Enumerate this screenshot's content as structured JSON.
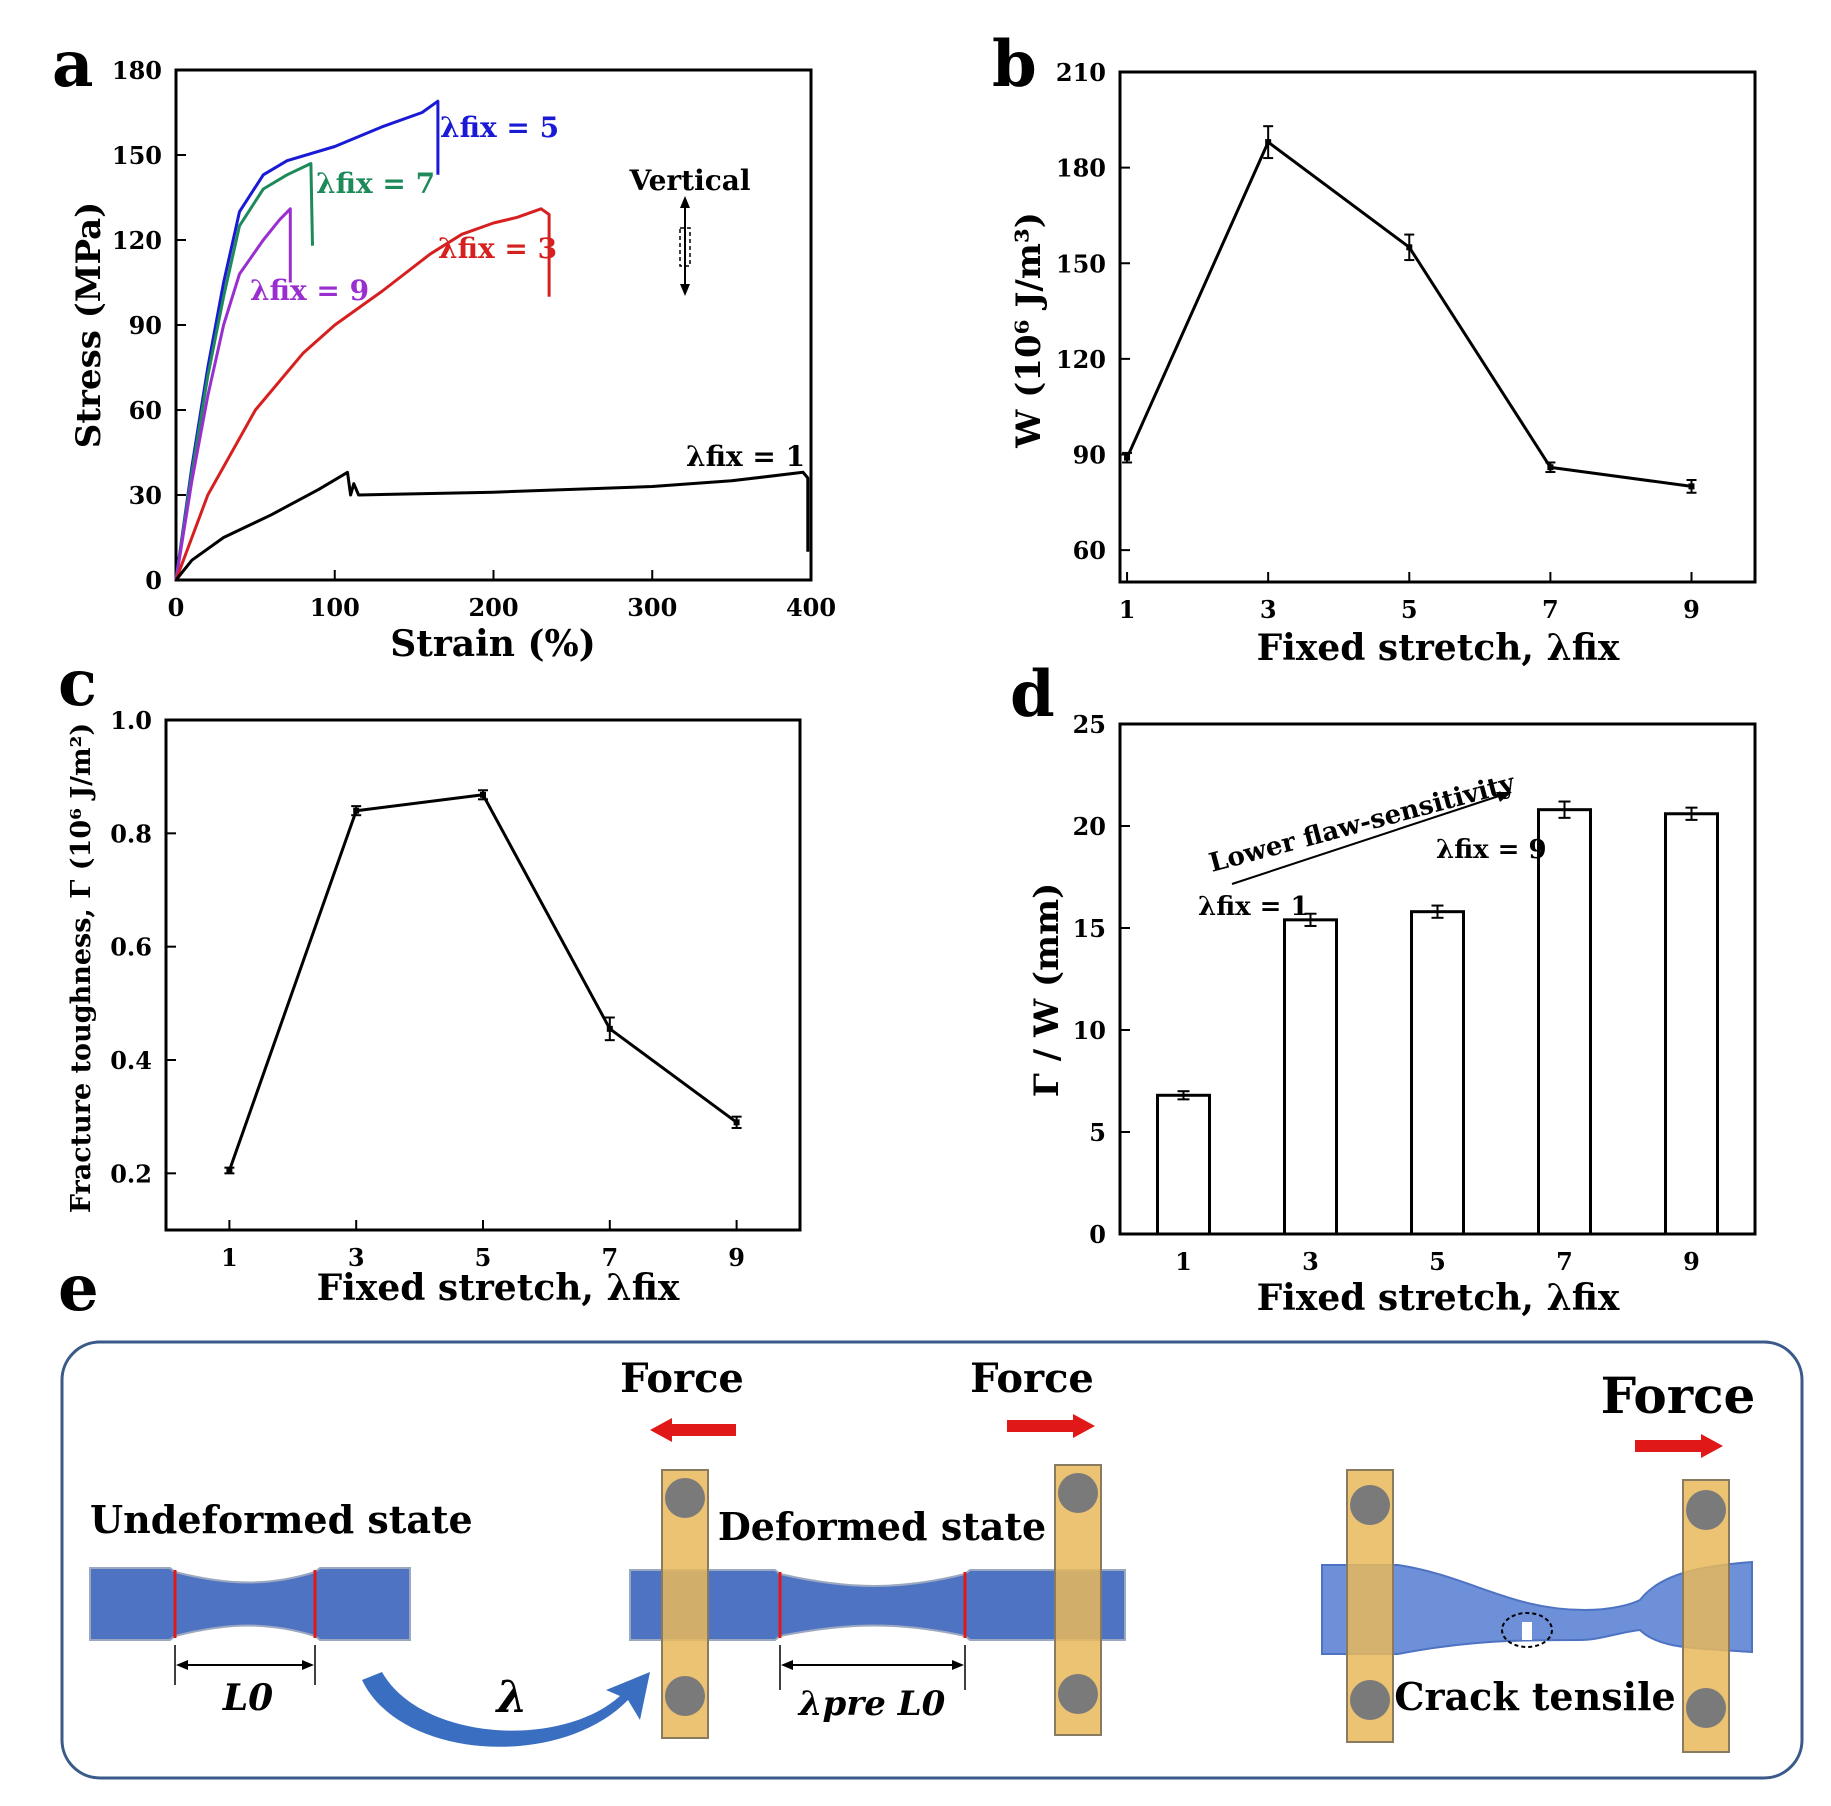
{
  "panels": {
    "a": {
      "letter": "a"
    },
    "b": {
      "letter": "b"
    },
    "c": {
      "letter": "c"
    },
    "d": {
      "letter": "d"
    },
    "e": {
      "letter": "e"
    }
  },
  "chart_data": [
    {
      "panel": "a",
      "type": "line",
      "xlabel": "Strain (%)",
      "ylabel": "Stress (MPa)",
      "xlim": [
        0,
        400
      ],
      "ylim": [
        0,
        180
      ],
      "xticks": [
        0,
        100,
        200,
        300,
        400
      ],
      "yticks": [
        0,
        30,
        60,
        90,
        120,
        150,
        180
      ],
      "annotation": "Vertical",
      "series": [
        {
          "name": "λfix = 5",
          "color": "#1a1ad6",
          "points": [
            [
              0,
              0
            ],
            [
              10,
              40
            ],
            [
              20,
              75
            ],
            [
              30,
              105
            ],
            [
              40,
              130
            ],
            [
              55,
              143
            ],
            [
              70,
              148
            ],
            [
              100,
              153
            ],
            [
              130,
              160
            ],
            [
              155,
              165
            ],
            [
              165,
              169
            ],
            [
              165,
              143
            ]
          ]
        },
        {
          "name": "λfix = 7",
          "color": "#1e8a5a",
          "points": [
            [
              0,
              0
            ],
            [
              10,
              38
            ],
            [
              20,
              72
            ],
            [
              30,
              100
            ],
            [
              40,
              125
            ],
            [
              55,
              138
            ],
            [
              70,
              143
            ],
            [
              85,
              147
            ],
            [
              86,
              118
            ]
          ]
        },
        {
          "name": "λfix = 9",
          "color": "#9a2fd0",
          "points": [
            [
              0,
              0
            ],
            [
              10,
              35
            ],
            [
              20,
              65
            ],
            [
              30,
              90
            ],
            [
              40,
              108
            ],
            [
              55,
              120
            ],
            [
              65,
              127
            ],
            [
              72,
              131
            ],
            [
              72,
              105
            ]
          ]
        },
        {
          "name": "λfix = 3",
          "color": "#d62020",
          "points": [
            [
              0,
              0
            ],
            [
              20,
              30
            ],
            [
              50,
              60
            ],
            [
              80,
              80
            ],
            [
              100,
              90
            ],
            [
              130,
              102
            ],
            [
              160,
              115
            ],
            [
              180,
              122
            ],
            [
              200,
              126
            ],
            [
              215,
              128
            ],
            [
              230,
              131
            ],
            [
              235,
              129
            ],
            [
              235,
              100
            ]
          ]
        },
        {
          "name": "λfix = 1",
          "color": "#000000",
          "points": [
            [
              0,
              0
            ],
            [
              10,
              7
            ],
            [
              30,
              15
            ],
            [
              60,
              23
            ],
            [
              90,
              32
            ],
            [
              105,
              37
            ],
            [
              108,
              38
            ],
            [
              110,
              30
            ],
            [
              112,
              34
            ],
            [
              115,
              30
            ],
            [
              200,
              31
            ],
            [
              300,
              33
            ],
            [
              350,
              35
            ],
            [
              395,
              38
            ],
            [
              398,
              36
            ],
            [
              398,
              10
            ]
          ]
        }
      ]
    },
    {
      "panel": "b",
      "type": "line",
      "xlabel": "Fixed stretch, λfix",
      "ylabel": "W (10⁶ J/m³)",
      "x": [
        1,
        3,
        5,
        7,
        9
      ],
      "values": [
        89,
        188,
        155,
        86,
        80
      ],
      "errors": [
        1.5,
        5,
        4,
        1.5,
        2
      ],
      "xlim": [
        0.9,
        9.9
      ],
      "ylim": [
        50,
        210
      ],
      "yticks": [
        60,
        90,
        120,
        150,
        180,
        210
      ]
    },
    {
      "panel": "c",
      "type": "line",
      "xlabel": "Fixed stretch, λfix",
      "ylabel": "Fracture toughness, Γ (10⁶ J/m²)",
      "x": [
        1,
        3,
        5,
        7,
        9
      ],
      "values": [
        0.205,
        0.84,
        0.868,
        0.455,
        0.29
      ],
      "errors": [
        0.005,
        0.008,
        0.008,
        0.02,
        0.01
      ],
      "xlim": [
        0,
        10
      ],
      "ylim": [
        0.1,
        1.0
      ],
      "yticks": [
        0.2,
        0.4,
        0.6,
        0.8,
        1.0
      ]
    },
    {
      "panel": "d",
      "type": "bar",
      "xlabel": "Fixed stretch, λfix",
      "ylabel": "Γ / W (mm)",
      "categories": [
        "1",
        "3",
        "5",
        "7",
        "9"
      ],
      "values": [
        6.8,
        15.4,
        15.8,
        20.8,
        20.6
      ],
      "errors": [
        0.2,
        0.3,
        0.3,
        0.4,
        0.3
      ],
      "ylim": [
        0,
        25
      ],
      "yticks": [
        0,
        5,
        10,
        15,
        20,
        25
      ],
      "annotation": "Lower flaw-sensitivity",
      "arrow_start_label": "λfix = 1",
      "arrow_end_label": "λfix = 9"
    }
  ],
  "schematic": {
    "force_labels": [
      "Force",
      "Force",
      "Force"
    ],
    "undeformed_label": "Undeformed state",
    "deformed_label": "Deformed state",
    "crack_label": "Crack tensile",
    "length_label": "L0",
    "pre_length_label": "λpre L0",
    "lambda_label": "λ"
  },
  "colors": {
    "specimen": "#4f73c3",
    "clamp": "#e8b85a",
    "arrow": "#e01818",
    "frame": "#3a5a8a"
  }
}
